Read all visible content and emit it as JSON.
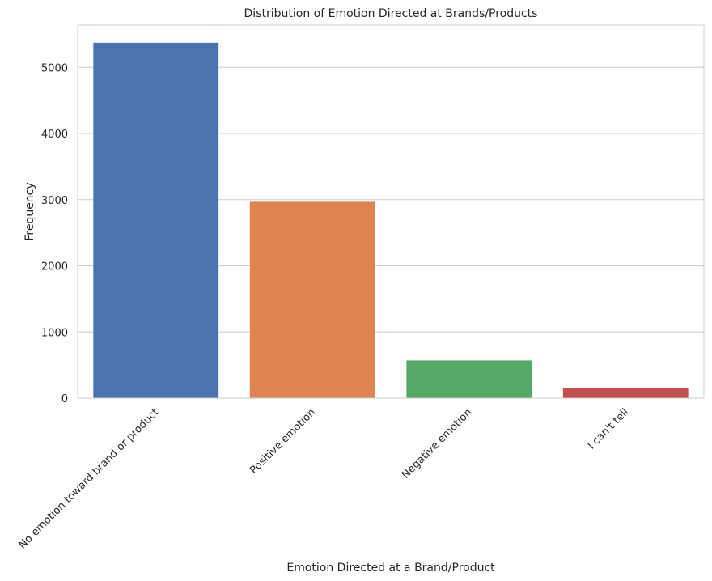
{
  "chart_data": {
    "type": "bar",
    "title": "Distribution of Emotion Directed at Brands/Products",
    "xlabel": "Emotion Directed at a Brand/Product",
    "ylabel": "Frequency",
    "categories": [
      "No emotion toward brand or product",
      "Positive emotion",
      "Negative emotion",
      "I can't tell"
    ],
    "values": [
      5372,
      2968,
      570,
      156
    ],
    "colors": [
      "#4c72b0",
      "#dd8452",
      "#55a868",
      "#c44e52"
    ],
    "ylim": [
      0,
      5640
    ],
    "yticks": [
      0,
      1000,
      2000,
      3000,
      4000,
      5000
    ],
    "grid": "horizontal",
    "legend": "none"
  }
}
